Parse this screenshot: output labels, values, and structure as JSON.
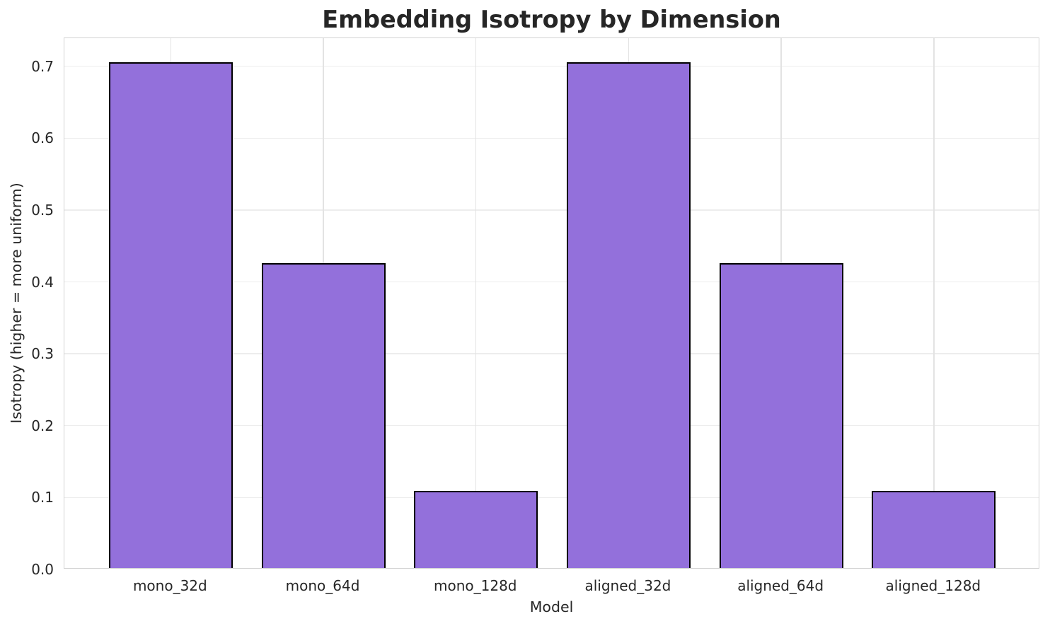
{
  "title": "Embedding Isotropy by Dimension",
  "x_axis_label": "Model",
  "y_axis_label": "Isotropy (higher = more uniform)",
  "colors": {
    "bar_fill": "#9370DB",
    "bar_edge": "#000000",
    "grid": "#ededed",
    "spine": "#d2d2d2",
    "text": "#262626",
    "title_text": "#262626",
    "background": "#ffffff"
  },
  "chart_data": {
    "type": "bar",
    "categories": [
      "mono_32d",
      "mono_64d",
      "mono_128d",
      "aligned_32d",
      "aligned_64d",
      "aligned_128d"
    ],
    "values": [
      0.7035,
      0.4237,
      0.1068,
      0.7035,
      0.4237,
      0.1068
    ],
    "title": "Embedding Isotropy by Dimension",
    "xlabel": "Model",
    "ylabel": "Isotropy (higher = more uniform)",
    "ylim": [
      0.0,
      0.739
    ],
    "yticks": [
      0.0,
      0.1,
      0.2,
      0.3,
      0.4,
      0.5,
      0.6,
      0.7
    ],
    "grid": true,
    "legend": false,
    "bar_color": "#9370DB",
    "bar_edge_color": "#000000"
  }
}
